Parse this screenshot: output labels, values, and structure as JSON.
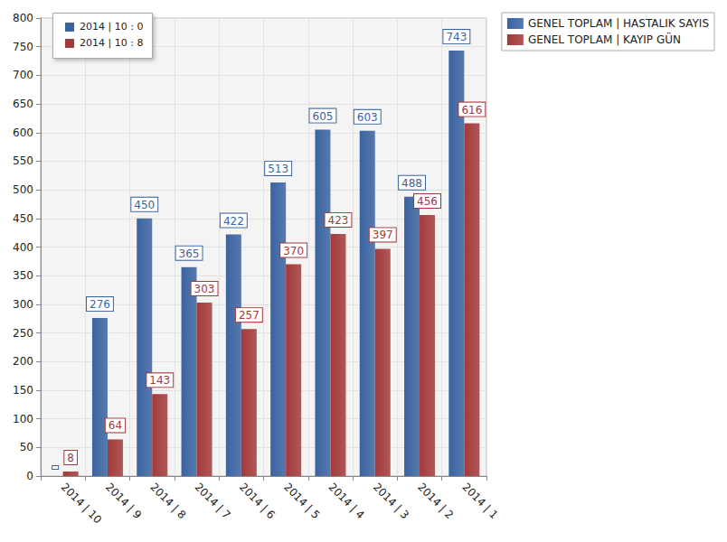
{
  "chart_data": {
    "type": "bar",
    "categories": [
      "2014 | 10",
      "2014 | 9",
      "2014 | 8",
      "2014 | 7",
      "2014 | 6",
      "2014 | 5",
      "2014 | 4",
      "2014 | 3",
      "2014 | 2",
      "2014 | 1"
    ],
    "series": [
      {
        "name": "GENEL TOPLAM | HASTALIK SAYIS",
        "color": "#3a63a0",
        "values": [
          0,
          276,
          450,
          365,
          422,
          513,
          605,
          603,
          488,
          743
        ]
      },
      {
        "name": "GENEL TOPLAM | KAYIP GÜN",
        "color": "#a33a3a",
        "values": [
          8,
          64,
          143,
          303,
          257,
          370,
          423,
          397,
          456,
          616
        ]
      }
    ],
    "annotations": [
      "2014 | 10 : 0",
      "2014 | 10 : 8"
    ],
    "ylim": [
      0,
      800
    ],
    "yticks": [
      0,
      50,
      100,
      150,
      200,
      250,
      300,
      350,
      400,
      450,
      500,
      550,
      600,
      650,
      700,
      750,
      800
    ],
    "grid": true,
    "legend": "upper right",
    "data_labels": true
  }
}
